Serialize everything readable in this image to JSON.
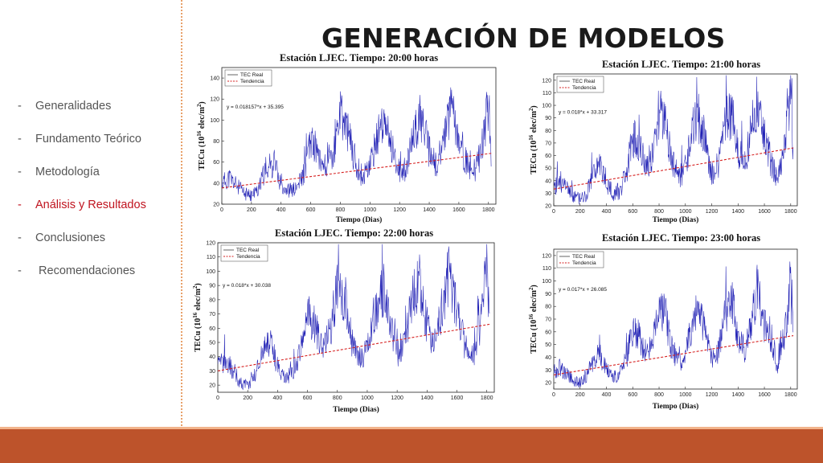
{
  "title": "GENERACIÓN DE MODELOS",
  "menu": {
    "items": [
      {
        "label": "Generalidades",
        "active": false
      },
      {
        "label": "Fundamento Teórico",
        "active": false
      },
      {
        "label": "Metodología",
        "active": false
      },
      {
        "label": "Análisis y Resultados",
        "active": true
      },
      {
        "label": "Conclusiones",
        "active": false
      },
      {
        "label": " Recomendaciones",
        "active": false
      }
    ]
  },
  "colors": {
    "accent": "#c0141f",
    "footer": "#bd532b",
    "series_real": "#1f1fb4",
    "series_trend": "#d62020"
  },
  "chart_data": [
    {
      "type": "line",
      "title": "Estación LJEC. Tiempo: 20:00 horas",
      "xlabel": "Tiempo (Dias)",
      "ylabel": "TECu (10^16 elec/m^2)",
      "xlim": [
        0,
        1850
      ],
      "ylim": [
        20,
        150
      ],
      "xticks": [
        0,
        200,
        400,
        600,
        800,
        1000,
        1200,
        1400,
        1600,
        1800
      ],
      "yticks": [
        20,
        40,
        60,
        80,
        100,
        120,
        140
      ],
      "legend": [
        "TEC Real",
        "Tendencia"
      ],
      "legend_position": "top-left",
      "equation": "y = 0.018157*x + 35.395",
      "trend": {
        "slope": 0.018157,
        "intercept": 35.395
      },
      "seed": 11,
      "series": [
        {
          "name": "TEC Real",
          "x": [
            0,
            50,
            100,
            150,
            200,
            250,
            300,
            350,
            400,
            450,
            500,
            550,
            600,
            650,
            700,
            750,
            800,
            850,
            900,
            950,
            1000,
            1050,
            1100,
            1150,
            1200,
            1250,
            1300,
            1350,
            1400,
            1450,
            1500,
            1550,
            1600,
            1650,
            1700,
            1750,
            1800,
            1820
          ],
          "y": [
            40,
            45,
            38,
            30,
            28,
            35,
            55,
            58,
            40,
            33,
            34,
            48,
            80,
            70,
            55,
            65,
            105,
            90,
            60,
            45,
            55,
            85,
            95,
            75,
            50,
            55,
            90,
            100,
            70,
            55,
            85,
            110,
            80,
            60,
            45,
            70,
            115,
            65
          ]
        },
        {
          "name": "Tendencia",
          "x": [
            0,
            1820
          ],
          "y": [
            35.4,
            68.4
          ]
        }
      ]
    },
    {
      "type": "line",
      "title": "Estación LJEC. Tiempo: 21:00 horas",
      "xlabel": "Tiempo (Dias)",
      "ylabel": "TECu (10^16 elec/m^2)",
      "xlim": [
        0,
        1850
      ],
      "ylim": [
        20,
        125
      ],
      "xticks": [
        0,
        200,
        400,
        600,
        800,
        1000,
        1200,
        1400,
        1600,
        1800
      ],
      "yticks": [
        20,
        30,
        40,
        50,
        60,
        70,
        80,
        90,
        100,
        110,
        120
      ],
      "legend": [
        "TEC Real",
        "Tendencia"
      ],
      "legend_position": "top-left",
      "equation": "y = 0.018*x + 33.317",
      "trend": {
        "slope": 0.018,
        "intercept": 33.317
      },
      "seed": 23,
      "series": [
        {
          "name": "TEC Real",
          "x": [
            0,
            50,
            100,
            150,
            200,
            250,
            300,
            350,
            400,
            450,
            500,
            550,
            600,
            650,
            700,
            750,
            800,
            850,
            900,
            950,
            1000,
            1050,
            1100,
            1150,
            1200,
            1250,
            1300,
            1350,
            1400,
            1450,
            1500,
            1550,
            1600,
            1650,
            1700,
            1750,
            1800,
            1820
          ],
          "y": [
            35,
            40,
            33,
            28,
            25,
            30,
            48,
            52,
            38,
            30,
            32,
            45,
            75,
            68,
            52,
            60,
            95,
            85,
            55,
            42,
            50,
            78,
            90,
            70,
            45,
            52,
            85,
            95,
            65,
            52,
            80,
            105,
            75,
            55,
            40,
            65,
            110,
            60
          ]
        },
        {
          "name": "Tendencia",
          "x": [
            0,
            1820
          ],
          "y": [
            33.3,
            66.1
          ]
        }
      ]
    },
    {
      "type": "line",
      "title": "Estación LJEC. Tiempo: 22:00 horas",
      "xlabel": "Tiempo (Dias)",
      "ylabel": "TECu (10^16 elec/m^2)",
      "xlim": [
        0,
        1850
      ],
      "ylim": [
        15,
        120
      ],
      "xticks": [
        0,
        200,
        400,
        600,
        800,
        1000,
        1200,
        1400,
        1600,
        1800
      ],
      "yticks": [
        20,
        30,
        40,
        50,
        60,
        70,
        80,
        90,
        100,
        110,
        120
      ],
      "legend": [
        "TEC Real",
        "Tendencia"
      ],
      "legend_position": "top-left",
      "equation": "y = 0.018*x + 30.038",
      "trend": {
        "slope": 0.018,
        "intercept": 30.038
      },
      "seed": 37,
      "series": [
        {
          "name": "TEC Real",
          "x": [
            0,
            50,
            100,
            150,
            200,
            250,
            300,
            350,
            400,
            450,
            500,
            550,
            600,
            650,
            700,
            750,
            800,
            850,
            900,
            950,
            1000,
            1050,
            1100,
            1150,
            1200,
            1250,
            1300,
            1350,
            1400,
            1450,
            1500,
            1550,
            1600,
            1650,
            1700,
            1750,
            1800,
            1820
          ],
          "y": [
            32,
            38,
            30,
            22,
            20,
            28,
            45,
            50,
            33,
            25,
            28,
            42,
            70,
            62,
            48,
            55,
            90,
            80,
            50,
            38,
            45,
            72,
            85,
            65,
            42,
            48,
            80,
            92,
            62,
            48,
            75,
            100,
            70,
            50,
            35,
            60,
            100,
            55
          ]
        },
        {
          "name": "Tendencia",
          "x": [
            0,
            1820
          ],
          "y": [
            30.0,
            62.8
          ]
        }
      ]
    },
    {
      "type": "line",
      "title": "Estación LJEC. Tiempo: 23:00 horas",
      "xlabel": "Tiempo (Dias)",
      "ylabel": "TECu (10^16 elec/m^2)",
      "xlim": [
        0,
        1850
      ],
      "ylim": [
        15,
        125
      ],
      "xticks": [
        0,
        200,
        400,
        600,
        800,
        1000,
        1200,
        1400,
        1600,
        1800
      ],
      "yticks": [
        20,
        30,
        40,
        50,
        60,
        70,
        80,
        90,
        100,
        110,
        120
      ],
      "legend": [
        "TEC Real",
        "Tendencia"
      ],
      "legend_position": "top-left",
      "equation": "y = 0.017*x + 26.085",
      "trend": {
        "slope": 0.017,
        "intercept": 26.085
      },
      "seed": 53,
      "series": [
        {
          "name": "TEC Real",
          "x": [
            0,
            50,
            100,
            150,
            200,
            250,
            300,
            350,
            400,
            450,
            500,
            550,
            600,
            650,
            700,
            750,
            800,
            850,
            900,
            950,
            1000,
            1050,
            1100,
            1150,
            1200,
            1250,
            1300,
            1350,
            1400,
            1450,
            1500,
            1550,
            1600,
            1650,
            1700,
            1750,
            1800,
            1820
          ],
          "y": [
            28,
            32,
            26,
            22,
            20,
            24,
            38,
            42,
            30,
            24,
            26,
            38,
            62,
            56,
            44,
            50,
            80,
            72,
            46,
            36,
            42,
            66,
            78,
            60,
            40,
            44,
            74,
            85,
            58,
            44,
            70,
            95,
            66,
            48,
            34,
            56,
            100,
            50
          ]
        },
        {
          "name": "Tendencia",
          "x": [
            0,
            1820
          ],
          "y": [
            26.1,
            57.0
          ]
        }
      ]
    }
  ]
}
